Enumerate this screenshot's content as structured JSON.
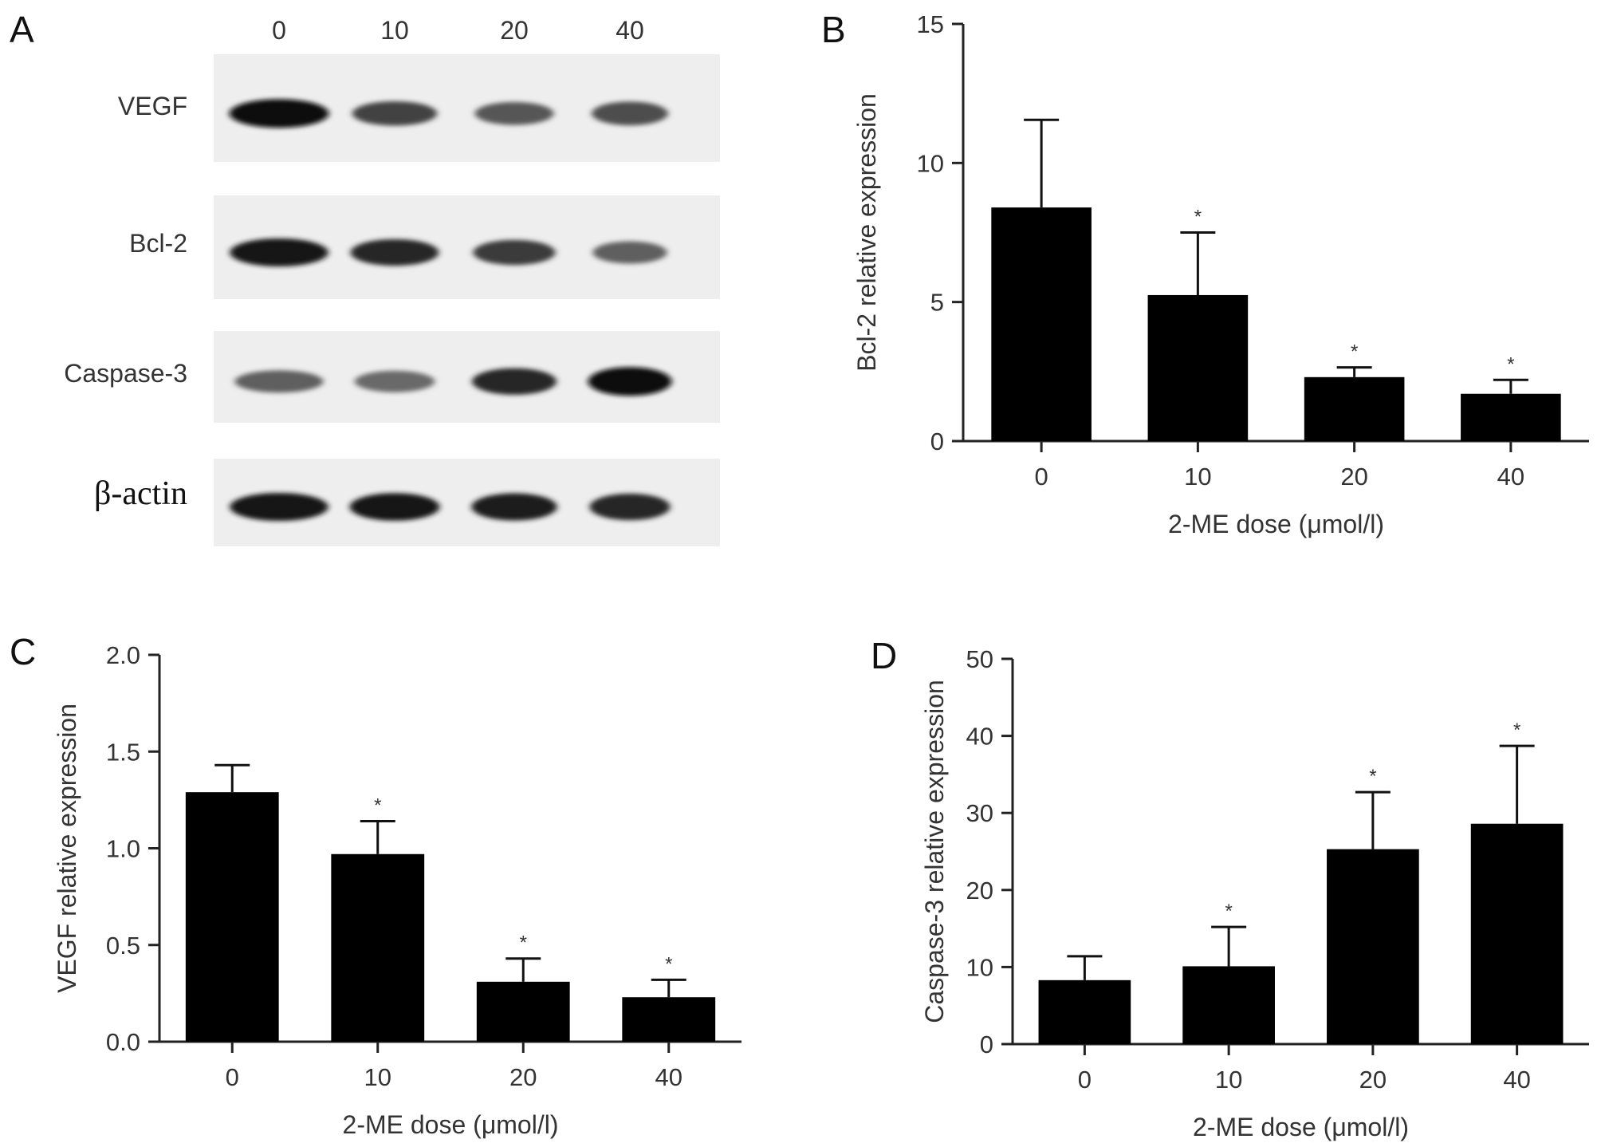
{
  "panels": {
    "A": "A",
    "B": "B",
    "C": "C",
    "D": "D"
  },
  "blot": {
    "lanes": [
      "0",
      "10",
      "20",
      "40"
    ],
    "proteins": [
      "VEGF",
      "Bcl-2",
      "Caspase-3",
      "β-actin"
    ],
    "band_intensity": [
      [
        1.0,
        0.7,
        0.6,
        0.65
      ],
      [
        0.95,
        0.85,
        0.75,
        0.55
      ],
      [
        0.55,
        0.5,
        0.85,
        1.0
      ],
      [
        0.95,
        0.92,
        0.9,
        0.85
      ]
    ]
  },
  "chart_data": [
    {
      "id": "B",
      "type": "bar",
      "categories": [
        "0",
        "10",
        "20",
        "40"
      ],
      "values": [
        8.4,
        5.25,
        2.3,
        1.7
      ],
      "errors": [
        3.15,
        2.25,
        0.35,
        0.5
      ],
      "significance": [
        "",
        "*",
        "*",
        "*"
      ],
      "xlabel": "2-ME dose (μmol/l)",
      "ylabel": "Bcl-2 relative expression",
      "ylim": [
        0,
        15
      ],
      "yticks": [
        "0",
        "5",
        "10",
        "15"
      ],
      "bar_color": "#000000"
    },
    {
      "id": "C",
      "type": "bar",
      "categories": [
        "0",
        "10",
        "20",
        "40"
      ],
      "values": [
        1.29,
        0.97,
        0.31,
        0.23
      ],
      "errors": [
        0.14,
        0.17,
        0.12,
        0.09
      ],
      "significance": [
        "",
        "*",
        "*",
        "*"
      ],
      "xlabel": "2-ME dose (μmol/l)",
      "ylabel": "VEGF relative expression",
      "ylim": [
        0,
        2
      ],
      "yticks": [
        "0.0",
        "0.5",
        "1.0",
        "1.5",
        "2.0"
      ],
      "bar_color": "#000000"
    },
    {
      "id": "D",
      "type": "bar",
      "categories": [
        "0",
        "10",
        "20",
        "40"
      ],
      "values": [
        8.3,
        10.1,
        25.3,
        28.6
      ],
      "errors": [
        3.1,
        5.1,
        7.4,
        10.1
      ],
      "significance": [
        "",
        "*",
        "*",
        "*"
      ],
      "xlabel": "2-ME dose (μmol/l)",
      "ylabel": "Caspase-3 relative expression",
      "ylim": [
        0,
        50
      ],
      "yticks": [
        "0",
        "10",
        "20",
        "30",
        "40",
        "50"
      ],
      "bar_color": "#000000"
    }
  ]
}
